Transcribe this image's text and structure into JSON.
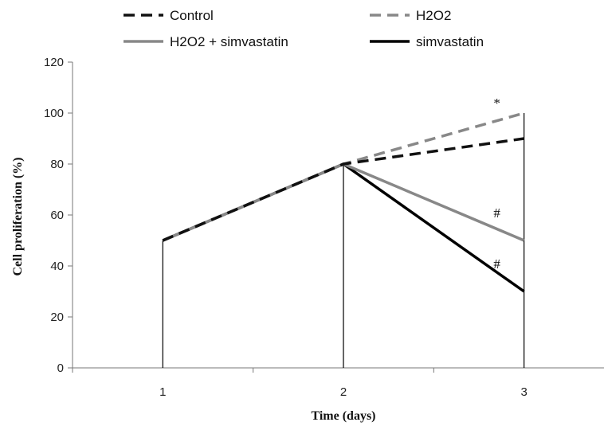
{
  "chart_data": {
    "type": "line",
    "xlabel": "Time (days)",
    "ylabel": "Cell proliferation (%)",
    "x": [
      1,
      2,
      3
    ],
    "xlim": [
      0.5,
      3.5
    ],
    "ylim": [
      0,
      120
    ],
    "yticks": [
      0,
      20,
      40,
      60,
      80,
      100,
      120
    ],
    "xticks": [
      1,
      2,
      3
    ],
    "grid": false,
    "legend_position": "top",
    "series": [
      {
        "name": "Control",
        "values": [
          50,
          80,
          90
        ],
        "color": "#111111",
        "dash": true
      },
      {
        "name": "H2O2",
        "values": [
          50,
          80,
          100
        ],
        "color": "#888888",
        "dash": true
      },
      {
        "name": "H2O2 + simvastatin",
        "values": [
          50,
          80,
          50
        ],
        "color": "#888888",
        "dash": false
      },
      {
        "name": "simvastatin",
        "values": [
          50,
          80,
          30
        ],
        "color": "#000000",
        "dash": false
      }
    ],
    "annotations": [
      {
        "text": "*",
        "x": 2.85,
        "y": 104
      },
      {
        "text": "#",
        "x": 2.85,
        "y": 61
      },
      {
        "text": "#",
        "x": 2.85,
        "y": 41
      }
    ]
  }
}
